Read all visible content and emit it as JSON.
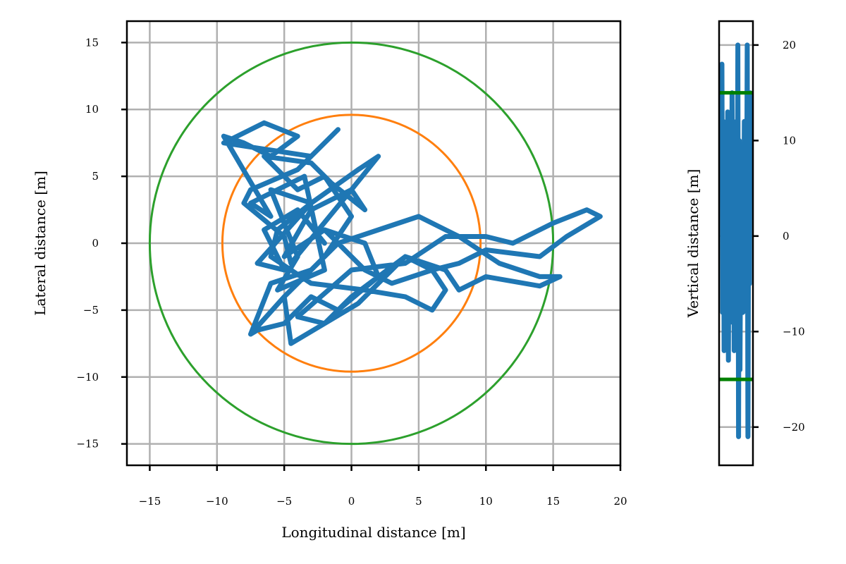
{
  "chart_data": [
    {
      "type": "line",
      "title": "",
      "xlabel": "Longitudinal distance [m]",
      "ylabel": "Lateral distance [m]",
      "xlim": [
        -16.7,
        20
      ],
      "ylim": [
        -16.6,
        16.6
      ],
      "xticks": [
        -15,
        -10,
        -5,
        0,
        5,
        10,
        15,
        20
      ],
      "yticks": [
        -15,
        -10,
        -5,
        0,
        5,
        10,
        15
      ],
      "grid": true,
      "legend": "none",
      "circles": [
        {
          "radius": 15.0,
          "color": "#2ca02c"
        },
        {
          "radius": 9.6,
          "color": "#ff7f0e"
        }
      ],
      "series": [
        {
          "color": "#1f77b4",
          "x": [
            -2,
            -4,
            -6.5,
            -5,
            -7,
            -3,
            -6,
            -4,
            -5.5,
            -2,
            -3.5,
            -7.5,
            -6,
            -9.5,
            -8,
            -6,
            -4,
            -6.5,
            -9.5,
            -3,
            -1,
            -4,
            -7.5,
            -8,
            -5,
            -4.5,
            0,
            2,
            0.5,
            -3,
            -5.5,
            -6,
            -3,
            1,
            4,
            6,
            7,
            6,
            4,
            2,
            0.5,
            -2,
            -4,
            0,
            4,
            7,
            10,
            12,
            15,
            17.5,
            18.5,
            16,
            14,
            10,
            8,
            6,
            3,
            1,
            -1,
            2,
            5,
            8,
            11,
            14,
            15.5,
            14,
            10,
            8,
            7,
            4,
            2,
            -1,
            -3,
            -5,
            -7,
            -7.5,
            -5,
            -4.5,
            -2,
            0,
            2,
            1,
            -2,
            -5,
            -3,
            0,
            1,
            -1.5,
            -3,
            -6.5,
            -4,
            -2,
            0,
            -2,
            -5,
            -7.5,
            -6,
            -3,
            -1,
            -2
          ],
          "y": [
            0,
            2.5,
            1,
            -2,
            -1.5,
            3,
            4,
            -1,
            -3.5,
            -2,
            5,
            3,
            2,
            8,
            7.5,
            6.5,
            8,
            9,
            7.5,
            6.5,
            8.5,
            5.5,
            4,
            3,
            0.5,
            -1.5,
            4,
            6.5,
            5.5,
            3,
            1,
            -1,
            -3,
            -3.5,
            -4,
            -5,
            -3.5,
            -2,
            -1,
            -3,
            -4.5,
            -6,
            -5.5,
            -2,
            -1.5,
            0.5,
            0.5,
            0,
            1.5,
            2.5,
            2,
            0.5,
            -1,
            -0.5,
            -1.5,
            -2,
            -3,
            -2,
            0,
            1,
            2,
            0.5,
            -1.5,
            -2.5,
            -2.5,
            -3.2,
            -2.5,
            -3.5,
            -2,
            -1,
            -2.5,
            -5,
            -4,
            -6,
            -6.5,
            -6.8,
            -4,
            -7.5,
            -6,
            -4,
            -2.5,
            0,
            1,
            -1,
            2.5,
            4,
            2.5,
            4.5,
            6,
            6.5,
            4,
            5,
            2,
            -1,
            -4,
            -6.8,
            -3,
            -2,
            0,
            1
          ]
        }
      ]
    },
    {
      "type": "line",
      "title": "",
      "xlabel": "",
      "ylabel": "Vertical distance [m]",
      "ylim": [
        -24,
        22.5
      ],
      "yticks": [
        -20,
        -10,
        0,
        10,
        20
      ],
      "grid": true,
      "legend": "none",
      "hlines": [
        {
          "y": 15,
          "color": "#008000"
        },
        {
          "y": -15,
          "color": "#008000"
        }
      ],
      "series": [
        {
          "color": "#1f77b4",
          "y": [
            18,
            -8,
            12,
            -12,
            5,
            -5,
            10,
            -10,
            13,
            -13,
            8,
            -6,
            11,
            -9,
            15,
            -4,
            12,
            -12,
            9,
            -11,
            7,
            -10,
            20,
            -21,
            10,
            -14,
            3,
            -3,
            6,
            -8,
            0,
            12,
            -7,
            4,
            -2,
            20,
            -21,
            5,
            -5,
            15
          ]
        }
      ]
    }
  ]
}
